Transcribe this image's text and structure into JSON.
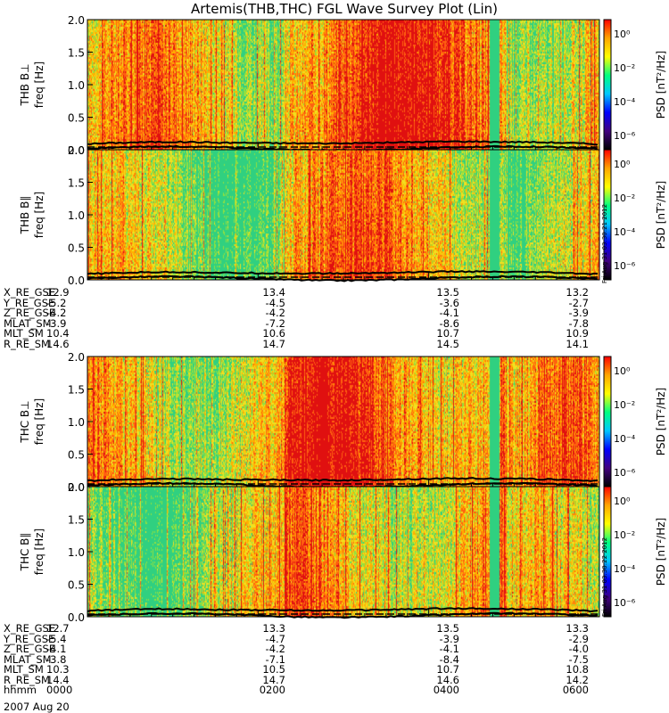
{
  "title": "Artemis(THB,THC) FGL Wave Survey Plot (Lin)",
  "side_stamp": "Fri Aug 31 03:30:21 2012",
  "side_stamp2": "Fri Aug 31 03:30:22 2012",
  "colorbar": {
    "label": "PSD [nT²/Hz]",
    "ticks": [
      "10⁰",
      "10⁻²",
      "10⁻⁴",
      "10⁻⁶"
    ],
    "colors": [
      "#ff0000",
      "#ffa500",
      "#ffff00",
      "#00ff80",
      "#00c8ff",
      "#0000ff",
      "#400080",
      "#000000"
    ]
  },
  "chart_data": [
    {
      "type": "heatmap",
      "panel": "THB B⊥",
      "ylabel": "freq [Hz]",
      "panel_label": "THB B⊥",
      "yticks": [
        "0.0",
        "0.5",
        "1.0",
        "1.5",
        "2.0"
      ],
      "ylim": [
        0,
        2.0
      ],
      "xlim": [
        "0000",
        "0600"
      ],
      "style": "intense"
    },
    {
      "type": "heatmap",
      "panel": "THB B∥",
      "ylabel": "freq [Hz]",
      "panel_label": "THB B∥",
      "yticks": [
        "0.0",
        "0.5",
        "1.0",
        "1.5",
        "2.0"
      ],
      "ylim": [
        0,
        2.0
      ],
      "xlim": [
        "0000",
        "0600"
      ],
      "style": "mild"
    },
    {
      "type": "heatmap",
      "panel": "THC B⊥",
      "ylabel": "freq [Hz]",
      "panel_label": "THC B⊥",
      "yticks": [
        "0.0",
        "0.5",
        "1.0",
        "1.5",
        "2.0"
      ],
      "ylim": [
        0,
        2.0
      ],
      "xlim": [
        "0000",
        "0600"
      ],
      "style": "intense"
    },
    {
      "type": "heatmap",
      "panel": "THC B∥",
      "ylabel": "freq [Hz]",
      "panel_label": "THC B∥",
      "yticks": [
        "0.0",
        "0.5",
        "1.0",
        "1.5",
        "2.0"
      ],
      "ylim": [
        0,
        2.0
      ],
      "xlim": [
        "0000",
        "0600"
      ],
      "style": "mild"
    }
  ],
  "ephemeris": [
    {
      "rows": [
        {
          "name": "X_RE_GSE",
          "values": [
            "12.9",
            "13.4",
            "13.5",
            "13.2"
          ]
        },
        {
          "name": "Y_RE_GSE",
          "values": [
            "-5.2",
            "-4.5",
            "-3.6",
            "-2.7"
          ]
        },
        {
          "name": "Z_RE_GSE",
          "values": [
            "-4.2",
            "-4.2",
            "-4.1",
            "-3.9"
          ]
        },
        {
          "name": "MLAT_SM",
          "values": [
            "-3.9",
            "-7.2",
            "-8.6",
            "-7.8"
          ]
        },
        {
          "name": "MLT_SM",
          "values": [
            "10.4",
            "10.6",
            "10.7",
            "10.9"
          ]
        },
        {
          "name": "R_RE_SM",
          "values": [
            "14.6",
            "14.7",
            "14.5",
            "14.1"
          ]
        }
      ]
    },
    {
      "rows": [
        {
          "name": "X_RE_GSE",
          "values": [
            "12.7",
            "13.3",
            "13.5",
            "13.3"
          ]
        },
        {
          "name": "Y_RE_GSE",
          "values": [
            "-5.4",
            "-4.7",
            "-3.9",
            "-2.9"
          ]
        },
        {
          "name": "Z_RE_GSE",
          "values": [
            "-4.1",
            "-4.2",
            "-4.1",
            "-4.0"
          ]
        },
        {
          "name": "MLAT_SM",
          "values": [
            "-3.8",
            "-7.1",
            "-8.4",
            "-7.5"
          ]
        },
        {
          "name": "MLT_SM",
          "values": [
            "10.3",
            "10.5",
            "10.7",
            "10.8"
          ]
        },
        {
          "name": "R_RE_SM",
          "values": [
            "14.4",
            "14.7",
            "14.6",
            "14.2"
          ]
        },
        {
          "name": "hhmm",
          "values": [
            "0000",
            "0200",
            "0400",
            "0600"
          ]
        }
      ]
    }
  ],
  "date": "2007 Aug 20"
}
